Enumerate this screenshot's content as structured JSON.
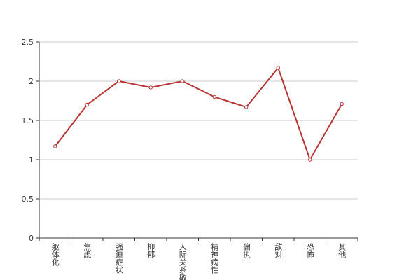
{
  "chart_data": {
    "type": "line",
    "categories": [
      "躯体化",
      "焦虑",
      "强迫症状",
      "抑郁",
      "人际关系敏感",
      "精神病性",
      "偏执",
      "敌对",
      "恐怖",
      "其他"
    ],
    "series": [
      {
        "color": "#b83434",
        "values": [
          1.17,
          1.7,
          2.0,
          1.92,
          2.0,
          1.8,
          1.67,
          2.17,
          1.0,
          1.71
        ]
      }
    ],
    "ylim": [
      0,
      2.5
    ],
    "yticks": [
      0,
      0.5,
      1,
      1.5,
      2,
      2.5
    ],
    "grid": true
  }
}
